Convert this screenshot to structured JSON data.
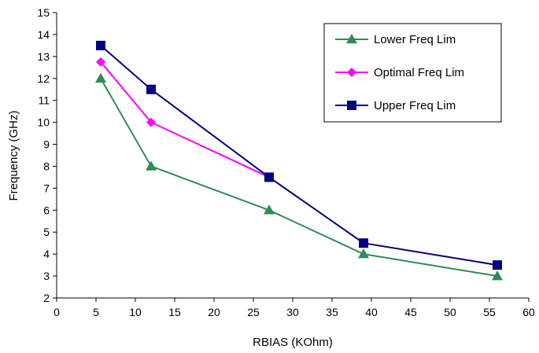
{
  "chart_data": {
    "type": "line",
    "xlabel": "RBIAS (KOhm)",
    "ylabel": "Frequency (GHz)",
    "xlim": [
      0,
      60
    ],
    "ylim": [
      2,
      15
    ],
    "xticks": [
      "0",
      "5",
      "10",
      "15",
      "20",
      "25",
      "30",
      "35",
      "40",
      "45",
      "50",
      "55",
      "60"
    ],
    "yticks": [
      "2",
      "3",
      "4",
      "5",
      "6",
      "7",
      "8",
      "9",
      "10",
      "11",
      "12",
      "13",
      "14",
      "15"
    ],
    "grid": false,
    "legend_position": "top-right",
    "series": [
      {
        "name": "Lower Freq Lim",
        "color": "#2e8b57",
        "marker": "triangle",
        "points": [
          [
            5.6,
            12
          ],
          [
            12,
            8
          ],
          [
            27,
            6
          ],
          [
            39,
            4
          ],
          [
            56,
            3
          ]
        ]
      },
      {
        "name": "Optimal Freq Lim",
        "color": "#ff00ff",
        "marker": "diamond",
        "points": [
          [
            5.6,
            12.75
          ],
          [
            12,
            10
          ],
          [
            27,
            7.5
          ]
        ]
      },
      {
        "name": "Upper Freq Lim",
        "color": "#000080",
        "marker": "square",
        "points": [
          [
            5.6,
            13.5
          ],
          [
            12,
            11.5
          ],
          [
            27,
            7.5
          ],
          [
            39,
            4.5
          ],
          [
            56,
            3.5
          ]
        ]
      }
    ]
  }
}
